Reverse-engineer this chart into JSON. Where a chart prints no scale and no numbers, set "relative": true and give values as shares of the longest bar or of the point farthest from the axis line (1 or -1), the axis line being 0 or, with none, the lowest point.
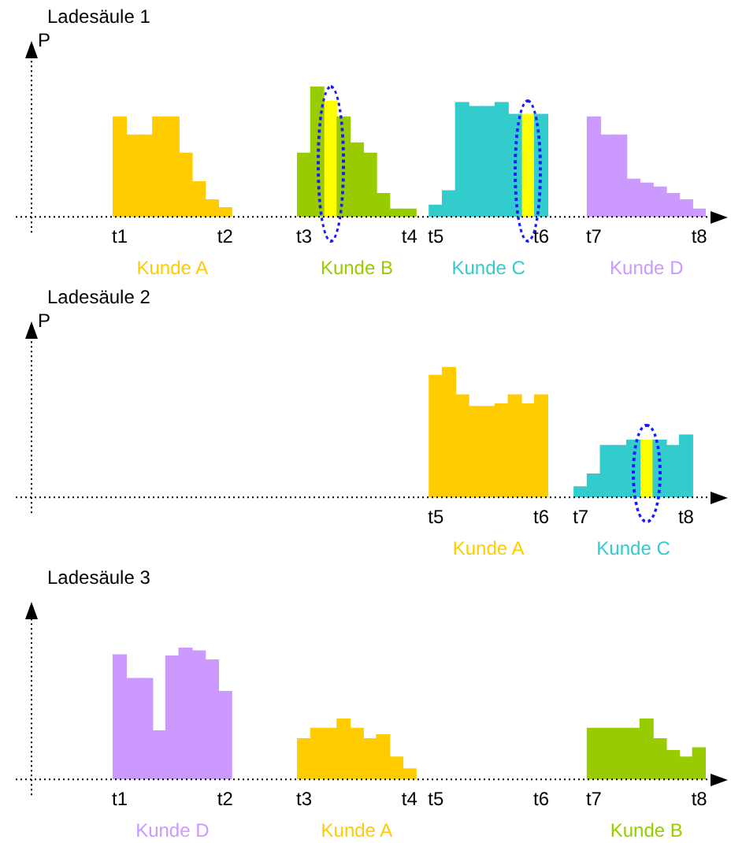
{
  "chart_data": [
    {
      "type": "bar",
      "title": "Ladesäule 1",
      "ylabel": "P",
      "relative": true,
      "categories": [
        null,
        null,
        null,
        null,
        null,
        "t1",
        null,
        null,
        null,
        null,
        null,
        null,
        null,
        "t2",
        null,
        null,
        null,
        null,
        null,
        "t3",
        null,
        null,
        null,
        null,
        null,
        null,
        null,
        "t4",
        null,
        "t5",
        null,
        null,
        null,
        null,
        null,
        null,
        null,
        "t6",
        null,
        null,
        null,
        "t7",
        null,
        null,
        null,
        null,
        null,
        null,
        null,
        "t8"
      ],
      "series": [
        {
          "name": "Kunde A",
          "color": "#ffcc00",
          "values": [
            null,
            null,
            null,
            null,
            null,
            0.77,
            0.63,
            0.63,
            0.77,
            0.77,
            0.49,
            0.27,
            0.13,
            0.07,
            null,
            null,
            null,
            null,
            null,
            null,
            null,
            null,
            null,
            null,
            null,
            null,
            null,
            null,
            null,
            null,
            null,
            null,
            null,
            null,
            null,
            null,
            null,
            null,
            null,
            null,
            null,
            null,
            null,
            null,
            null,
            null,
            null,
            null,
            null,
            null
          ]
        },
        {
          "name": "Kunde B",
          "color": "#99cc00",
          "values": [
            null,
            null,
            null,
            null,
            null,
            null,
            null,
            null,
            null,
            null,
            null,
            null,
            null,
            null,
            null,
            null,
            null,
            null,
            null,
            0.49,
            1,
            null,
            0.77,
            0.57,
            0.49,
            0.18,
            0.06,
            0.06,
            null,
            null,
            null,
            null,
            null,
            null,
            null,
            null,
            null,
            null,
            null,
            null,
            null,
            null,
            null,
            null,
            null,
            null,
            null,
            null,
            null,
            null
          ]
        },
        {
          "name": "Kunde C",
          "color": "#33cccc",
          "values": [
            null,
            null,
            null,
            null,
            null,
            null,
            null,
            null,
            null,
            null,
            null,
            null,
            null,
            null,
            null,
            null,
            null,
            null,
            null,
            null,
            null,
            null,
            null,
            null,
            null,
            null,
            null,
            null,
            null,
            0.09,
            0.2,
            0.88,
            0.85,
            0.85,
            0.88,
            0.79,
            null,
            0.79,
            null,
            null,
            null,
            null,
            null,
            null,
            null,
            null,
            null,
            null,
            null,
            null
          ]
        },
        {
          "name": "Kunde D",
          "color": "#cc99ff",
          "values": [
            null,
            null,
            null,
            null,
            null,
            null,
            null,
            null,
            null,
            null,
            null,
            null,
            null,
            null,
            null,
            null,
            null,
            null,
            null,
            null,
            null,
            null,
            null,
            null,
            null,
            null,
            null,
            null,
            null,
            null,
            null,
            null,
            null,
            null,
            null,
            null,
            null,
            null,
            null,
            null,
            null,
            0.77,
            0.63,
            0.63,
            0.29,
            0.26,
            0.23,
            0.18,
            0.13,
            0.06
          ]
        },
        {
          "color": "#ffff00",
          "values": [
            null,
            null,
            null,
            null,
            null,
            null,
            null,
            null,
            null,
            null,
            null,
            null,
            null,
            null,
            null,
            null,
            null,
            null,
            null,
            null,
            null,
            0.89,
            null,
            null,
            null,
            null,
            null,
            null,
            null,
            null,
            null,
            null,
            null,
            null,
            null,
            null,
            0.79,
            null,
            null,
            null,
            null,
            null,
            null,
            null,
            null,
            null,
            null,
            null,
            null,
            null
          ]
        }
      ]
    },
    {
      "type": "bar",
      "title": "Ladesäule 2",
      "ylabel": "P",
      "relative": true,
      "categories": [
        null,
        null,
        null,
        null,
        null,
        null,
        null,
        null,
        null,
        null,
        null,
        null,
        null,
        null,
        null,
        null,
        null,
        null,
        null,
        null,
        null,
        null,
        null,
        null,
        null,
        null,
        null,
        null,
        null,
        "t5",
        null,
        null,
        null,
        null,
        null,
        null,
        null,
        "t6",
        null,
        null,
        "t7",
        null,
        null,
        null,
        null,
        null,
        null,
        null,
        "t8",
        null
      ],
      "series": [
        {
          "name": "Kunde A",
          "color": "#ffcc00",
          "values": [
            null,
            null,
            null,
            null,
            null,
            null,
            null,
            null,
            null,
            null,
            null,
            null,
            null,
            null,
            null,
            null,
            null,
            null,
            null,
            null,
            null,
            null,
            null,
            null,
            null,
            null,
            null,
            null,
            null,
            0.94,
            1,
            0.79,
            0.7,
            0.7,
            0.72,
            0.79,
            0.72,
            0.79,
            null,
            null,
            null,
            null,
            null,
            null,
            null,
            null,
            null,
            null,
            null,
            null
          ]
        },
        {
          "name": "Kunde C",
          "color": "#33cccc",
          "values": [
            null,
            null,
            null,
            null,
            null,
            null,
            null,
            null,
            null,
            null,
            null,
            null,
            null,
            null,
            null,
            null,
            null,
            null,
            null,
            null,
            null,
            null,
            null,
            null,
            null,
            null,
            null,
            null,
            null,
            null,
            null,
            null,
            null,
            null,
            null,
            null,
            null,
            null,
            null,
            null,
            0.08,
            0.18,
            0.4,
            0.4,
            0.44,
            null,
            0.44,
            0.4,
            0.48,
            null
          ]
        },
        {
          "color": "#ffff00",
          "values": [
            null,
            null,
            null,
            null,
            null,
            null,
            null,
            null,
            null,
            null,
            null,
            null,
            null,
            null,
            null,
            null,
            null,
            null,
            null,
            null,
            null,
            null,
            null,
            null,
            null,
            null,
            null,
            null,
            null,
            null,
            null,
            null,
            null,
            null,
            null,
            null,
            null,
            null,
            null,
            null,
            null,
            null,
            null,
            null,
            null,
            0.44,
            null,
            null,
            null,
            null
          ]
        }
      ]
    },
    {
      "type": "bar",
      "title": "Ladesäule 3",
      "relative": true,
      "categories": [
        null,
        null,
        null,
        null,
        null,
        "t1",
        null,
        null,
        null,
        null,
        null,
        null,
        null,
        "t2",
        null,
        null,
        null,
        null,
        null,
        "t3",
        null,
        null,
        null,
        null,
        null,
        null,
        null,
        "t4",
        null,
        "t5",
        null,
        null,
        null,
        null,
        null,
        null,
        null,
        "t6",
        null,
        null,
        null,
        "t7",
        null,
        null,
        null,
        null,
        null,
        null,
        null,
        "t8"
      ],
      "series": [
        {
          "name": "Kunde D",
          "color": "#cc99ff",
          "values": [
            null,
            null,
            null,
            null,
            null,
            0.95,
            0.77,
            0.77,
            0.37,
            0.94,
            1,
            0.98,
            0.91,
            0.67,
            null,
            null,
            null,
            null,
            null,
            null,
            null,
            null,
            null,
            null,
            null,
            null,
            null,
            null,
            null,
            null,
            null,
            null,
            null,
            null,
            null,
            null,
            null,
            null,
            null,
            null,
            null,
            null,
            null,
            null,
            null,
            null,
            null,
            null,
            null,
            null
          ]
        },
        {
          "name": "Kunde A",
          "color": "#ffcc00",
          "values": [
            null,
            null,
            null,
            null,
            null,
            null,
            null,
            null,
            null,
            null,
            null,
            null,
            null,
            null,
            null,
            null,
            null,
            null,
            null,
            0.31,
            0.39,
            0.39,
            0.46,
            0.39,
            0.31,
            0.34,
            0.17,
            0.08,
            null,
            null,
            null,
            null,
            null,
            null,
            null,
            null,
            null,
            null,
            null,
            null,
            null,
            null,
            null,
            null,
            null,
            null,
            null,
            null,
            null,
            null
          ]
        },
        {
          "name": "Kunde B",
          "color": "#99cc00",
          "values": [
            null,
            null,
            null,
            null,
            null,
            null,
            null,
            null,
            null,
            null,
            null,
            null,
            null,
            null,
            null,
            null,
            null,
            null,
            null,
            null,
            null,
            null,
            null,
            null,
            null,
            null,
            null,
            null,
            null,
            null,
            null,
            null,
            null,
            null,
            null,
            null,
            null,
            null,
            null,
            null,
            null,
            0.39,
            0.39,
            0.39,
            0.39,
            0.46,
            0.31,
            0.22,
            0.17,
            0.24
          ]
        }
      ]
    }
  ]
}
